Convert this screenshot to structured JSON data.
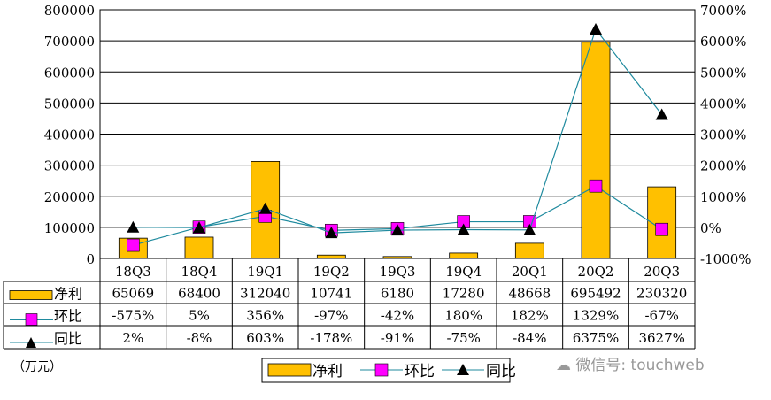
{
  "chart_data": {
    "type": "bar+line",
    "categories": [
      "18Q3",
      "18Q4",
      "19Q1",
      "19Q2",
      "19Q3",
      "19Q4",
      "20Q1",
      "20Q2",
      "20Q3"
    ],
    "series": [
      {
        "name": "净利",
        "kind": "bar",
        "axis": "left",
        "values": [
          65069,
          68400,
          312040,
          10741,
          6180,
          17280,
          48668,
          695492,
          230320
        ],
        "labels": [
          "65069",
          "68400",
          "312040",
          "10741",
          "6180",
          "17280",
          "48668",
          "695492",
          "230320"
        ],
        "color": "#FFC000"
      },
      {
        "name": "环比",
        "kind": "line",
        "axis": "right",
        "marker": "square",
        "values": [
          -575,
          5,
          356,
          -97,
          -42,
          180,
          182,
          1329,
          -67
        ],
        "labels": [
          "-575%",
          "5%",
          "356%",
          "-97%",
          "-42%",
          "180%",
          "182%",
          "1329%",
          "-67%"
        ],
        "color": "#FF00FF"
      },
      {
        "name": "同比",
        "kind": "line",
        "axis": "right",
        "marker": "triangle",
        "values": [
          2,
          -8,
          603,
          -178,
          -91,
          -75,
          -84,
          6375,
          3627
        ],
        "labels": [
          "2%",
          "-8%",
          "603%",
          "-178%",
          "-91%",
          "-75%",
          "-84%",
          "6375%",
          "3627%"
        ],
        "color": "#000000"
      }
    ],
    "left_axis": {
      "ylim": [
        0,
        800000
      ],
      "ticks": [
        "0",
        "100000",
        "200000",
        "300000",
        "400000",
        "500000",
        "600000",
        "700000",
        "800000"
      ]
    },
    "right_axis": {
      "ylim": [
        -1000,
        7000
      ],
      "ticks": [
        "-1000%",
        "0%",
        "1000%",
        "2000%",
        "3000%",
        "4000%",
        "5000%",
        "6000%",
        "7000%"
      ]
    },
    "unit_note": "（万元）",
    "grid": true,
    "legend_position": "bottom",
    "line_color": "#1F8A9E"
  },
  "watermark": "微信号: touchweb"
}
